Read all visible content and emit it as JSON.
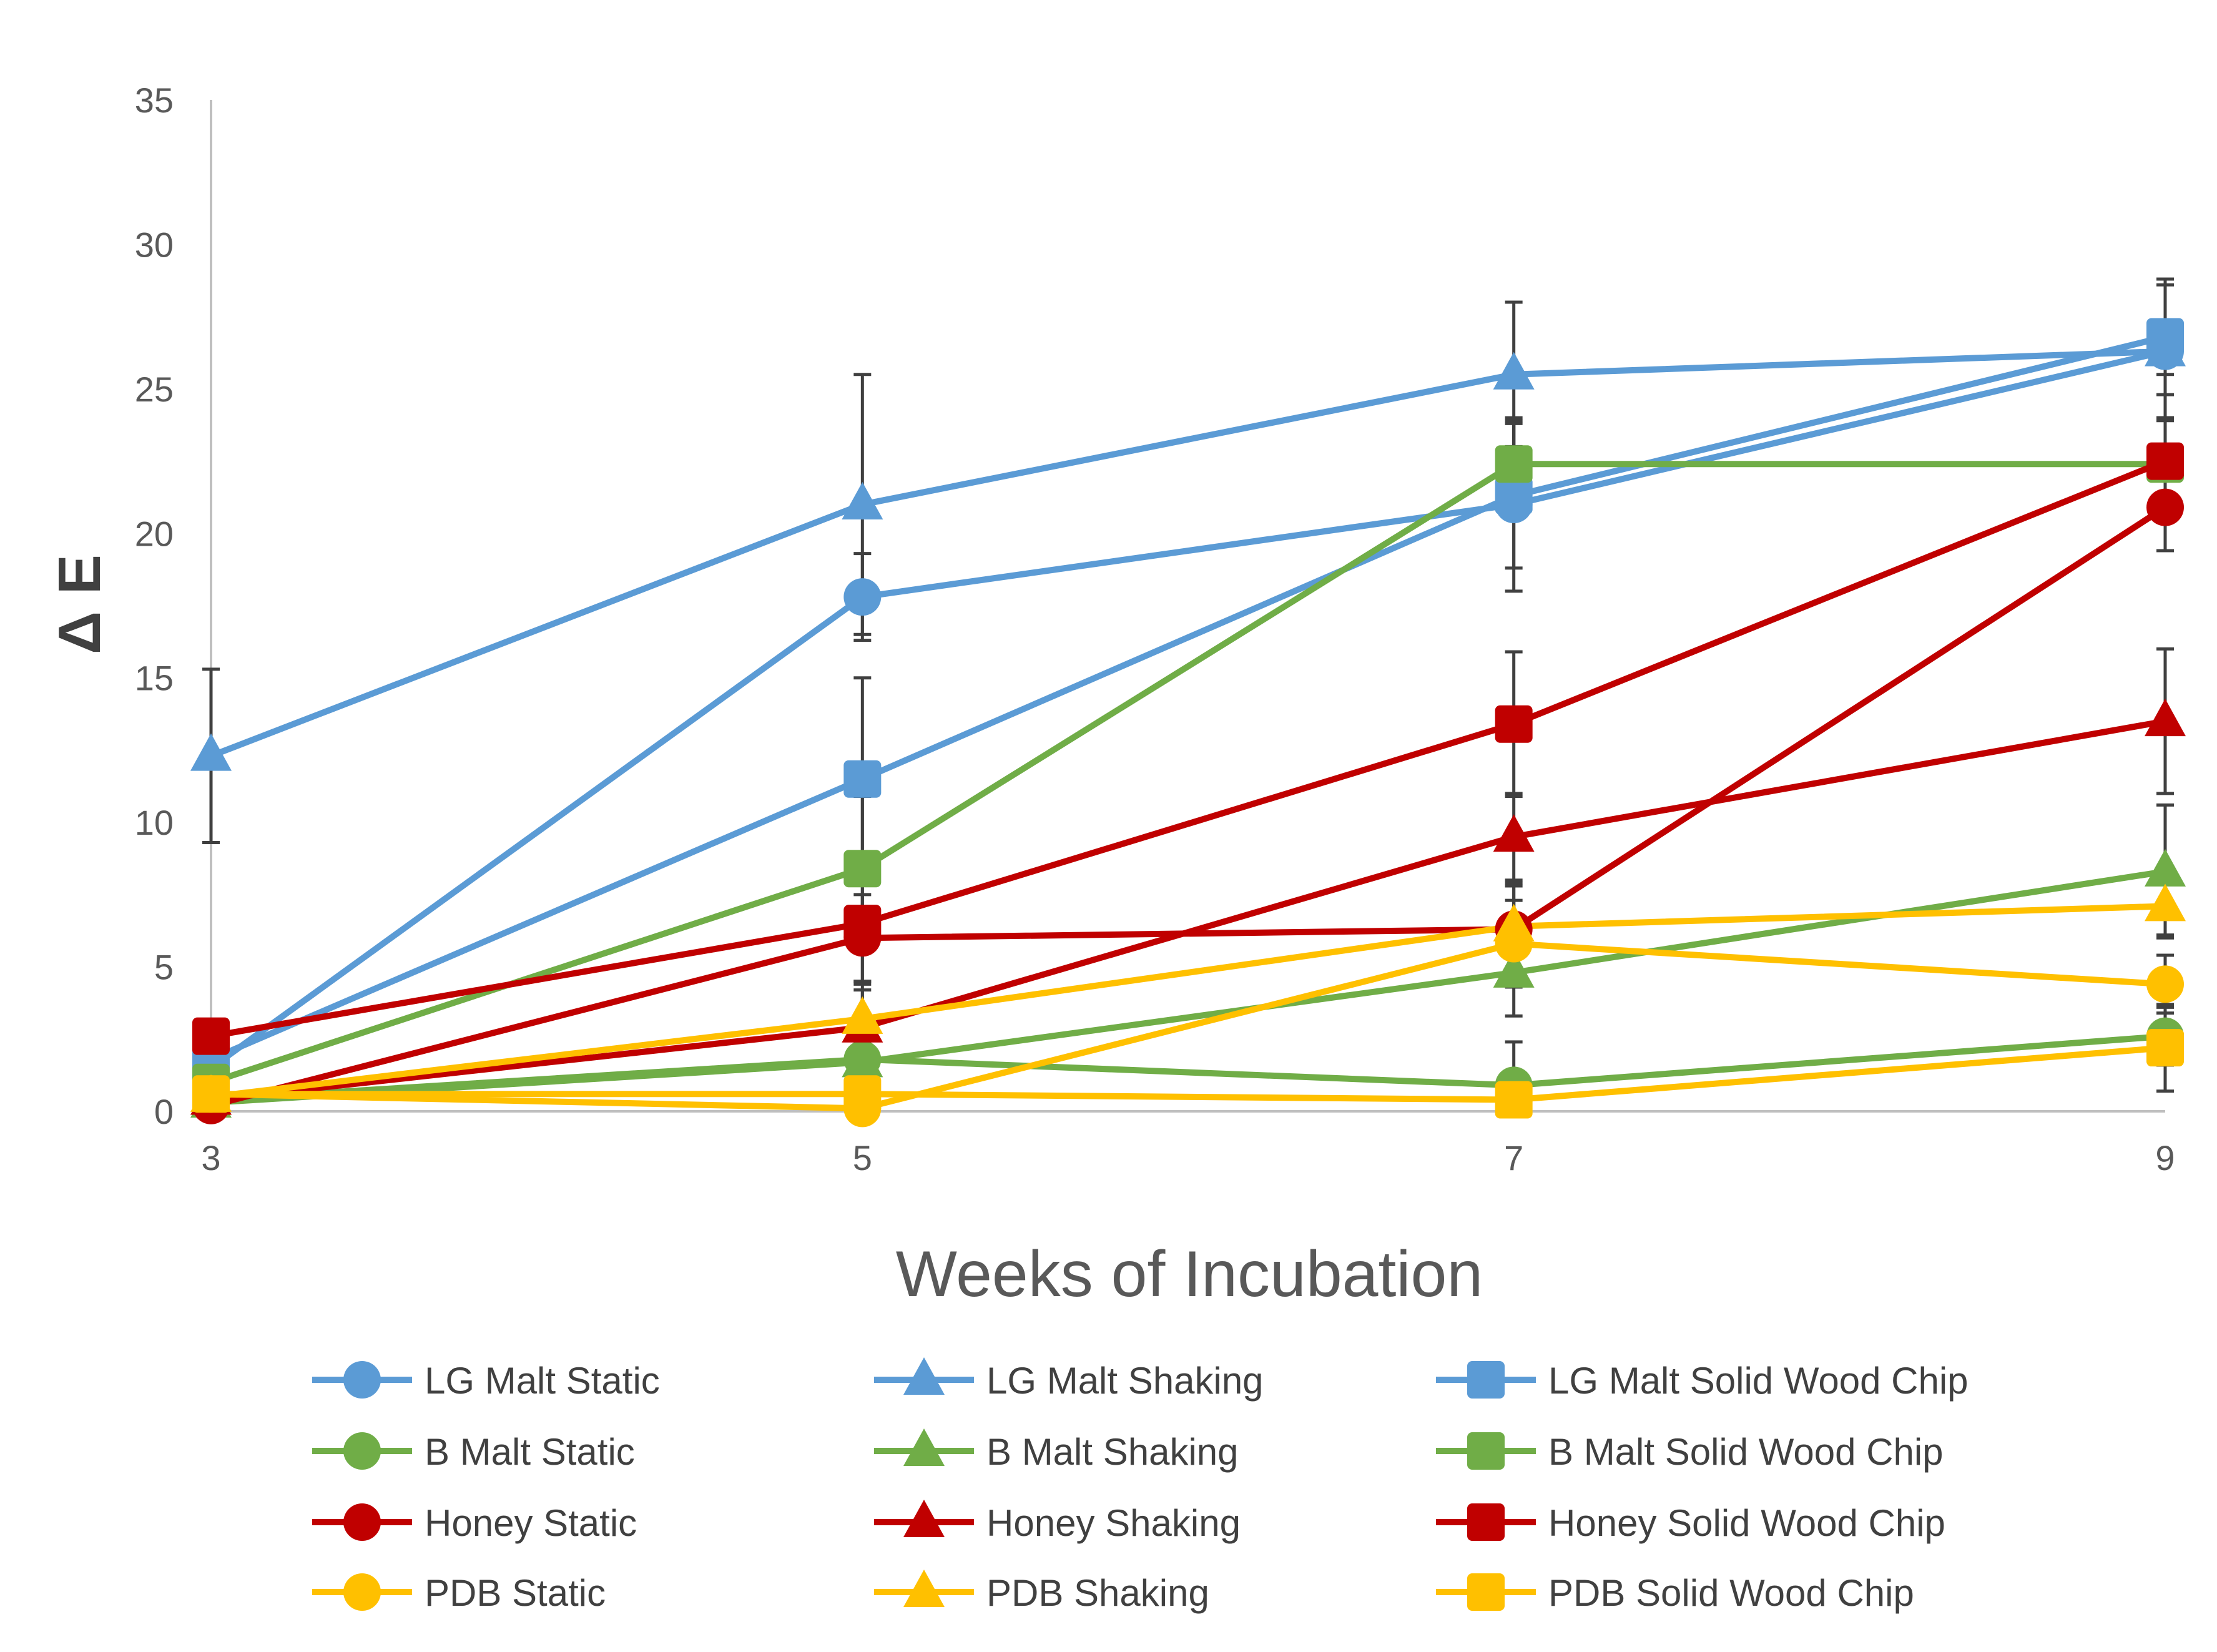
{
  "chart_data": {
    "type": "line",
    "title": "",
    "xlabel": "Weeks of Incubation",
    "ylabel": "Δ E",
    "x": [
      3,
      5,
      7,
      9
    ],
    "x_ticks": [
      "3",
      "5",
      "7",
      "9"
    ],
    "ylim": [
      0,
      35
    ],
    "y_ticks": [
      "0",
      "5",
      "10",
      "15",
      "20",
      "25",
      "30",
      "35"
    ],
    "grid": false,
    "legend_position": "bottom",
    "series": [
      {
        "name": "LG Malt Static",
        "color": "#5B9BD5",
        "marker": "circle",
        "values": [
          1.5,
          17.8,
          21.0,
          26.3
        ],
        "errors": [
          0.5,
          1.5,
          3.0,
          0.8
        ]
      },
      {
        "name": "LG Malt Shaking",
        "color": "#5B9BD5",
        "marker": "triangle",
        "values": [
          12.3,
          21.0,
          25.5,
          26.3
        ],
        "errors": [
          3.0,
          4.5,
          2.5,
          2.3
        ]
      },
      {
        "name": "LG Malt Solid Wood Chip",
        "color": "#5B9BD5",
        "marker": "square",
        "values": [
          1.8,
          11.5,
          21.3,
          26.8
        ],
        "errors": [
          0.5,
          3.5,
          2.5,
          2.0
        ]
      },
      {
        "name": "B Malt Static",
        "color": "#70AD47",
        "marker": "circle",
        "values": [
          0.4,
          1.8,
          0.9,
          2.6
        ],
        "errors": [
          0.3,
          0.6,
          1.5,
          1.0
        ]
      },
      {
        "name": "B Malt Shaking",
        "color": "#70AD47",
        "marker": "triangle",
        "values": [
          0.3,
          1.7,
          4.8,
          8.3
        ],
        "errors": [
          0.3,
          0.6,
          1.5,
          2.3
        ]
      },
      {
        "name": "B Malt Solid Wood Chip",
        "color": "#70AD47",
        "marker": "square",
        "values": [
          1.0,
          8.4,
          22.4,
          22.4
        ],
        "errors": [
          0.5,
          2.5,
          1.5,
          1.5
        ]
      },
      {
        "name": "Honey Static",
        "color": "#C00000",
        "marker": "circle",
        "values": [
          0.2,
          6.0,
          6.3,
          20.9
        ],
        "errors": [
          0.3,
          1.5,
          1.5,
          1.5
        ]
      },
      {
        "name": "Honey Shaking",
        "color": "#C00000",
        "marker": "triangle",
        "values": [
          0.4,
          2.9,
          9.5,
          13.5
        ],
        "errors": [
          0.3,
          1.5,
          1.5,
          2.5
        ]
      },
      {
        "name": "Honey Solid Wood Chip",
        "color": "#C00000",
        "marker": "square",
        "values": [
          2.6,
          6.5,
          13.4,
          22.5
        ],
        "errors": [
          0.5,
          2.0,
          2.5,
          1.5
        ]
      },
      {
        "name": "PDB Static",
        "color": "#FFC000",
        "marker": "circle",
        "values": [
          0.6,
          0.1,
          5.8,
          4.4
        ],
        "errors": [
          0.3,
          0.3,
          1.5,
          1.0
        ]
      },
      {
        "name": "PDB Shaking",
        "color": "#FFC000",
        "marker": "triangle",
        "values": [
          0.5,
          3.2,
          6.4,
          7.1
        ],
        "errors": [
          0.3,
          1.0,
          1.5,
          1.0
        ]
      },
      {
        "name": "PDB Solid Wood Chip",
        "color": "#FFC000",
        "marker": "square",
        "values": [
          0.6,
          0.6,
          0.4,
          2.2
        ],
        "errors": [
          0.3,
          0.3,
          0.3,
          1.5
        ]
      }
    ]
  }
}
